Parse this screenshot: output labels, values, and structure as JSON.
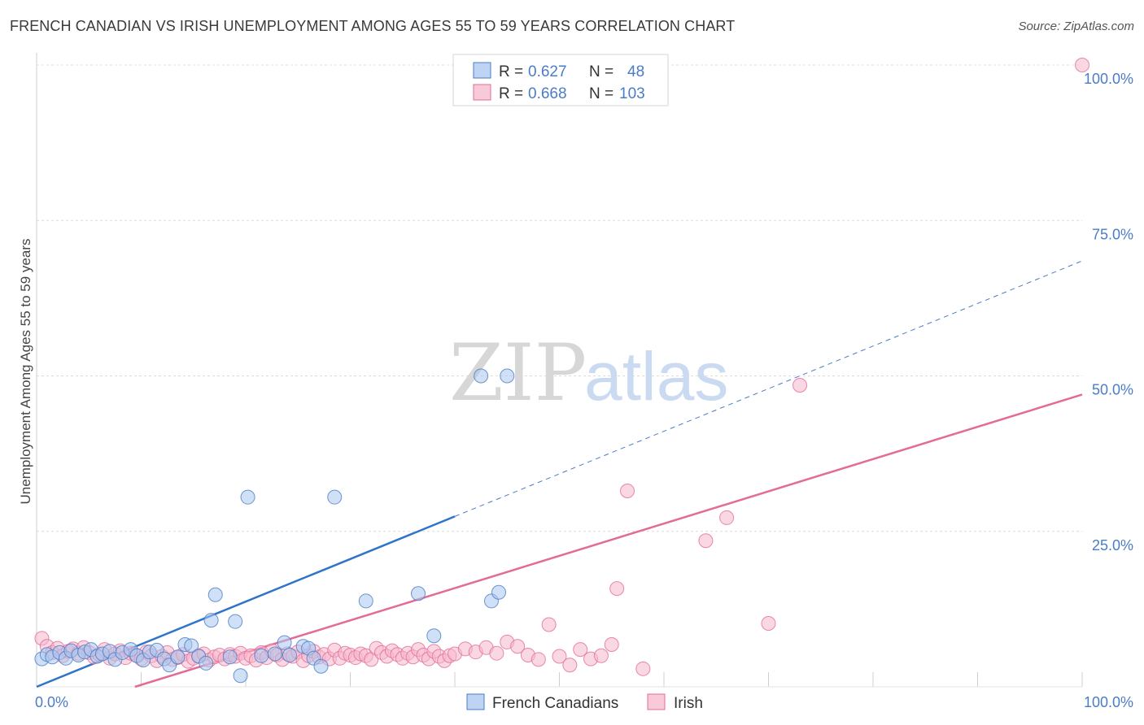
{
  "title": "FRENCH CANADIAN VS IRISH UNEMPLOYMENT AMONG AGES 55 TO 59 YEARS CORRELATION CHART",
  "source": "Source: ZipAtlas.com",
  "watermark": {
    "zip": "ZIP",
    "atlas": "atlas"
  },
  "colors": {
    "blue": "#4a7cc7",
    "blue_fill": "#a9c6ee",
    "pink": "#e36b98",
    "pink_fill": "#f5b8cc",
    "grid": "#dddddd"
  },
  "legend": {
    "rows": [
      {
        "r_label": "R =",
        "r_value": "0.627",
        "n_label": "N =",
        "n_value": "48"
      },
      {
        "r_label": "R =",
        "r_value": "0.668",
        "n_label": "N =",
        "n_value": "103"
      }
    ]
  },
  "chart_data": {
    "type": "scatter",
    "title": "FRENCH CANADIAN VS IRISH UNEMPLOYMENT AMONG AGES 55 TO 59 YEARS CORRELATION CHART",
    "xlabel": "",
    "ylabel": "Unemployment Among Ages 55 to 59 years",
    "xlim": [
      0,
      100
    ],
    "ylim": [
      0,
      100
    ],
    "x_tick_labels": [
      "0.0%",
      "100.0%"
    ],
    "y_ticks": [
      25,
      50,
      75,
      100
    ],
    "y_tick_labels": [
      "25.0%",
      "50.0%",
      "75.0%",
      "100.0%"
    ],
    "grid": true,
    "legend_position": "top-center",
    "series": [
      {
        "name": "French Canadians",
        "r": 0.627,
        "n": 48,
        "trend": {
          "x0": 0,
          "y0": 0,
          "x1": 100,
          "y1": 68.5,
          "solid_until_x": 40
        },
        "points": [
          [
            0.5,
            4.5
          ],
          [
            1.0,
            5.2
          ],
          [
            1.5,
            4.8
          ],
          [
            2.2,
            5.5
          ],
          [
            2.8,
            4.6
          ],
          [
            3.3,
            5.8
          ],
          [
            4.0,
            5.1
          ],
          [
            4.6,
            5.6
          ],
          [
            5.2,
            6.0
          ],
          [
            5.8,
            4.9
          ],
          [
            6.3,
            5.3
          ],
          [
            7.0,
            5.7
          ],
          [
            7.5,
            4.4
          ],
          [
            8.2,
            5.5
          ],
          [
            9.0,
            6.0
          ],
          [
            9.6,
            5.0
          ],
          [
            10.2,
            4.3
          ],
          [
            10.8,
            5.6
          ],
          [
            11.5,
            5.9
          ],
          [
            12.2,
            4.5
          ],
          [
            12.7,
            3.5
          ],
          [
            13.5,
            4.8
          ],
          [
            14.2,
            6.8
          ],
          [
            14.8,
            6.6
          ],
          [
            15.5,
            4.9
          ],
          [
            16.2,
            3.8
          ],
          [
            16.7,
            10.7
          ],
          [
            17.1,
            14.8
          ],
          [
            18.5,
            4.8
          ],
          [
            19.0,
            10.5
          ],
          [
            19.5,
            1.8
          ],
          [
            20.2,
            30.5
          ],
          [
            21.5,
            5.0
          ],
          [
            22.8,
            5.3
          ],
          [
            23.7,
            7.1
          ],
          [
            24.2,
            5.1
          ],
          [
            25.5,
            6.5
          ],
          [
            26.0,
            6.2
          ],
          [
            26.5,
            4.6
          ],
          [
            27.2,
            3.3
          ],
          [
            28.5,
            30.5
          ],
          [
            31.5,
            13.8
          ],
          [
            36.5,
            15.0
          ],
          [
            38.0,
            8.2
          ],
          [
            42.5,
            50.0
          ],
          [
            45.0,
            50.0
          ],
          [
            43.5,
            13.8
          ],
          [
            44.2,
            15.2
          ]
        ]
      },
      {
        "name": "Irish",
        "r": 0.668,
        "n": 103,
        "trend": {
          "x0": 9.4,
          "y0": 0,
          "x1": 100,
          "y1": 47.0
        },
        "points": [
          [
            0.5,
            7.8
          ],
          [
            1.0,
            6.5
          ],
          [
            1.5,
            5.5
          ],
          [
            2.0,
            6.2
          ],
          [
            2.5,
            5.0
          ],
          [
            3.0,
            5.7
          ],
          [
            3.5,
            6.1
          ],
          [
            4.0,
            5.4
          ],
          [
            4.5,
            6.3
          ],
          [
            5.0,
            5.5
          ],
          [
            5.5,
            4.8
          ],
          [
            6.0,
            5.2
          ],
          [
            6.5,
            6.0
          ],
          [
            7.0,
            4.6
          ],
          [
            7.5,
            5.3
          ],
          [
            8.0,
            5.8
          ],
          [
            8.5,
            4.7
          ],
          [
            9.0,
            5.4
          ],
          [
            9.5,
            5.1
          ],
          [
            10.0,
            4.5
          ],
          [
            10.5,
            5.6
          ],
          [
            11.0,
            5.0
          ],
          [
            11.5,
            4.2
          ],
          [
            12.0,
            4.9
          ],
          [
            12.5,
            5.5
          ],
          [
            13.0,
            4.4
          ],
          [
            13.5,
            4.7
          ],
          [
            14.0,
            5.2
          ],
          [
            14.5,
            4.1
          ],
          [
            15.0,
            4.6
          ],
          [
            15.5,
            5.0
          ],
          [
            16.0,
            5.3
          ],
          [
            16.5,
            4.3
          ],
          [
            17.0,
            4.8
          ],
          [
            17.5,
            5.1
          ],
          [
            18.0,
            4.5
          ],
          [
            18.5,
            5.2
          ],
          [
            19.0,
            4.9
          ],
          [
            19.5,
            5.4
          ],
          [
            20.0,
            4.6
          ],
          [
            20.5,
            5.0
          ],
          [
            21.0,
            4.3
          ],
          [
            21.5,
            5.5
          ],
          [
            22.0,
            4.7
          ],
          [
            22.5,
            5.8
          ],
          [
            23.0,
            5.1
          ],
          [
            23.5,
            4.4
          ],
          [
            24.0,
            5.3
          ],
          [
            24.5,
            4.9
          ],
          [
            25.0,
            5.6
          ],
          [
            25.5,
            4.2
          ],
          [
            26.0,
            5.0
          ],
          [
            26.5,
            5.7
          ],
          [
            27.0,
            4.8
          ],
          [
            27.5,
            5.2
          ],
          [
            28.0,
            4.5
          ],
          [
            28.5,
            5.9
          ],
          [
            29.0,
            4.6
          ],
          [
            29.5,
            5.4
          ],
          [
            30.0,
            5.1
          ],
          [
            30.5,
            4.7
          ],
          [
            31.0,
            5.3
          ],
          [
            31.5,
            5.0
          ],
          [
            32.0,
            4.4
          ],
          [
            32.5,
            6.2
          ],
          [
            33.0,
            5.5
          ],
          [
            33.5,
            4.9
          ],
          [
            34.0,
            5.8
          ],
          [
            34.5,
            5.2
          ],
          [
            35.0,
            4.6
          ],
          [
            35.5,
            5.4
          ],
          [
            36.0,
            4.8
          ],
          [
            36.5,
            6.0
          ],
          [
            37.0,
            5.1
          ],
          [
            37.5,
            4.5
          ],
          [
            38.0,
            5.7
          ],
          [
            38.5,
            4.9
          ],
          [
            39.0,
            4.2
          ],
          [
            39.5,
            5.0
          ],
          [
            40.0,
            5.3
          ],
          [
            41.0,
            6.1
          ],
          [
            42.0,
            5.6
          ],
          [
            43.0,
            6.3
          ],
          [
            44.0,
            5.4
          ],
          [
            45.0,
            7.2
          ],
          [
            46.0,
            6.5
          ],
          [
            47.0,
            5.1
          ],
          [
            48.0,
            4.4
          ],
          [
            49.0,
            10.0
          ],
          [
            50.0,
            4.9
          ],
          [
            51.0,
            3.5
          ],
          [
            52.0,
            6.0
          ],
          [
            53.0,
            4.5
          ],
          [
            54.0,
            5.0
          ],
          [
            55.0,
            6.8
          ],
          [
            55.5,
            15.8
          ],
          [
            56.5,
            31.5
          ],
          [
            58.0,
            2.9
          ],
          [
            64.0,
            23.5
          ],
          [
            66.0,
            27.2
          ],
          [
            70.0,
            10.2
          ],
          [
            73.0,
            48.5
          ],
          [
            100.0,
            100.0
          ]
        ]
      }
    ]
  },
  "bottom_legend": [
    {
      "label": "French Canadians"
    },
    {
      "label": "Irish"
    }
  ]
}
